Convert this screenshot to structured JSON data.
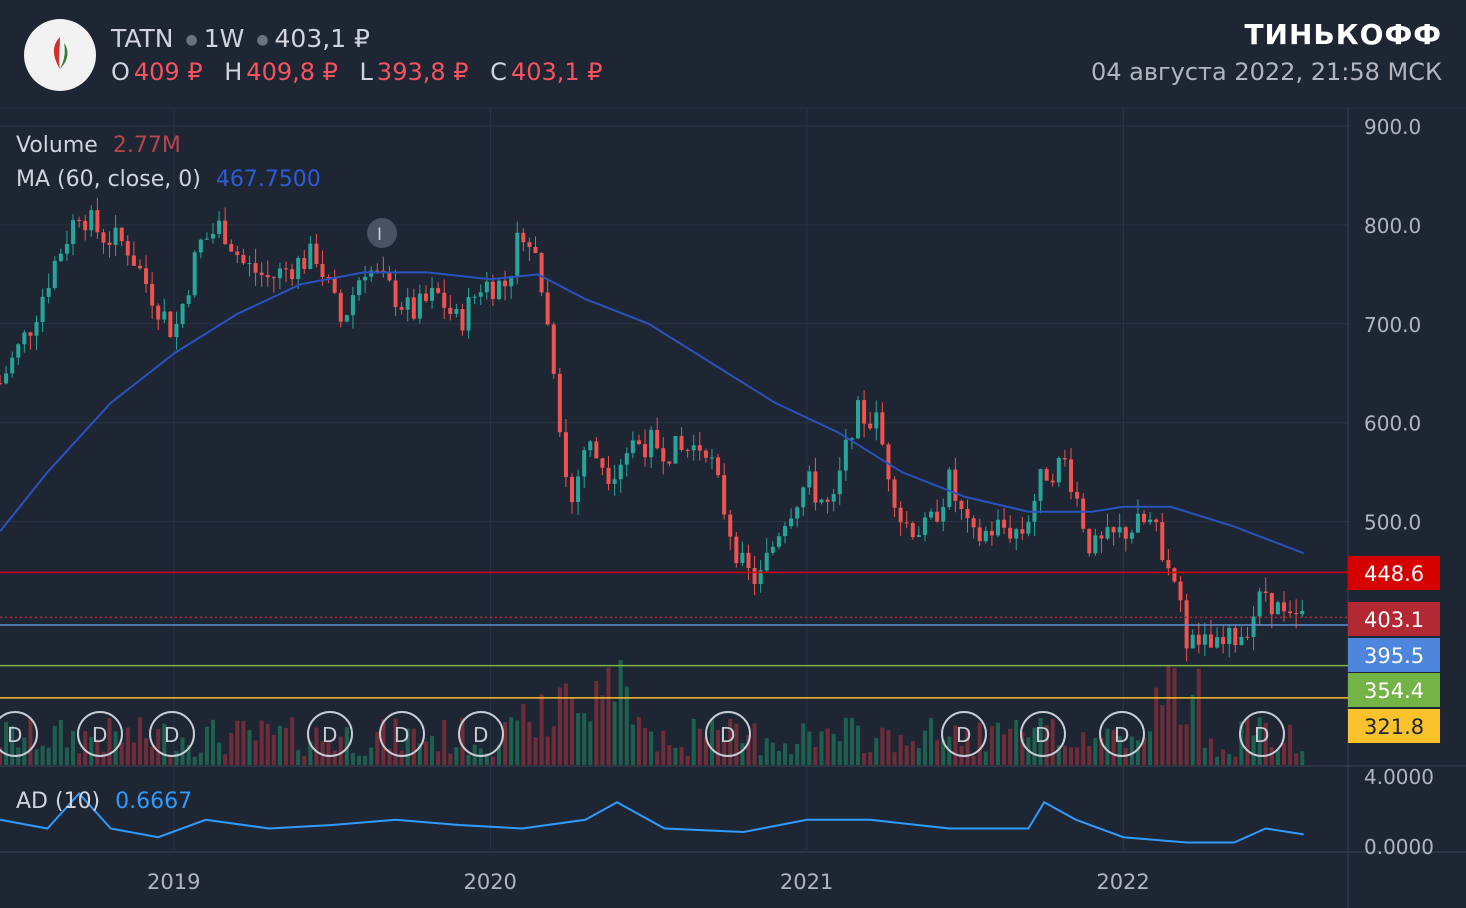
{
  "header": {
    "ticker": "TATN",
    "interval": "1W",
    "last_price": "403,1 ₽",
    "ohlc": [
      {
        "label": "O",
        "value": "409 ₽"
      },
      {
        "label": "H",
        "value": "409,8 ₽"
      },
      {
        "label": "L",
        "value": "393,8 ₽"
      },
      {
        "label": "C",
        "value": "403,1 ₽"
      }
    ],
    "brand": "ТИНЬКОФФ",
    "datetime": "04 августа 2022, 21:58 МСК"
  },
  "indicators": {
    "volume_label": "Volume",
    "volume_value": "2.77M",
    "ma_label": "MA (60, close, 0)",
    "ma_value": "467.7500",
    "ad_label": "AD (10)",
    "ad_value": "0.6667"
  },
  "colors": {
    "up": "#26a69a",
    "down": "#ef5350",
    "ma": "#2962ff",
    "ad": "#2f9bff",
    "background": "#1e2634"
  },
  "chart_data": {
    "type": "candlestick",
    "x_ticks": [
      "2019",
      "2020",
      "2021",
      "2022"
    ],
    "price_ticks": [
      900.0,
      800.0,
      700.0,
      600.0,
      500.0
    ],
    "price_ylim": [
      300,
      920
    ],
    "horizontal_levels": [
      {
        "value": 448.6,
        "label": "448.6",
        "color": "#d50000"
      },
      {
        "value": 403.1,
        "label": "403.1",
        "color": "#b22833",
        "dotted": true
      },
      {
        "value": 395.5,
        "label": "395.5",
        "color": "#5f8fd6"
      },
      {
        "value": 354.4,
        "label": "354.4",
        "color": "#7cb342"
      },
      {
        "value": 321.8,
        "label": "321.8",
        "color": "#fbc02d"
      }
    ],
    "dividend_markers": [
      "D",
      "D",
      "D",
      "D",
      "D",
      "D",
      "D",
      "D",
      "D",
      "D",
      "D"
    ],
    "event_marker": "I",
    "ad_ticks": [
      "4.0000",
      "0.0000"
    ],
    "price_path": [
      [
        2018.45,
        640
      ],
      [
        2018.55,
        700
      ],
      [
        2018.62,
        760
      ],
      [
        2018.7,
        815
      ],
      [
        2018.77,
        790
      ],
      [
        2018.85,
        780
      ],
      [
        2018.93,
        730
      ],
      [
        2019.0,
        690
      ],
      [
        2019.08,
        780
      ],
      [
        2019.15,
        800
      ],
      [
        2019.22,
        760
      ],
      [
        2019.3,
        745
      ],
      [
        2019.38,
        760
      ],
      [
        2019.45,
        770
      ],
      [
        2019.53,
        700
      ],
      [
        2019.6,
        760
      ],
      [
        2019.68,
        735
      ],
      [
        2019.75,
        710
      ],
      [
        2019.83,
        730
      ],
      [
        2019.9,
        700
      ],
      [
        2019.97,
        740
      ],
      [
        2020.05,
        740
      ],
      [
        2020.1,
        800
      ],
      [
        2020.15,
        760
      ],
      [
        2020.2,
        660
      ],
      [
        2020.25,
        510
      ],
      [
        2020.3,
        580
      ],
      [
        2020.38,
        550
      ],
      [
        2020.45,
        580
      ],
      [
        2020.5,
        580
      ],
      [
        2020.6,
        570
      ],
      [
        2020.68,
        580
      ],
      [
        2020.75,
        500
      ],
      [
        2020.8,
        450
      ],
      [
        2020.85,
        440
      ],
      [
        2020.92,
        500
      ],
      [
        2021.0,
        540
      ],
      [
        2021.08,
        510
      ],
      [
        2021.15,
        610
      ],
      [
        2021.22,
        600
      ],
      [
        2021.3,
        500
      ],
      [
        2021.38,
        490
      ],
      [
        2021.45,
        540
      ],
      [
        2021.52,
        480
      ],
      [
        2021.6,
        495
      ],
      [
        2021.68,
        490
      ],
      [
        2021.75,
        550
      ],
      [
        2021.82,
        560
      ],
      [
        2021.9,
        470
      ],
      [
        2022.0,
        490
      ],
      [
        2022.08,
        500
      ],
      [
        2022.15,
        460
      ],
      [
        2022.2,
        380
      ],
      [
        2022.3,
        370
      ],
      [
        2022.38,
        390
      ],
      [
        2022.45,
        430
      ],
      [
        2022.52,
        395
      ],
      [
        2022.57,
        403.1
      ]
    ],
    "ma_path": [
      [
        2018.45,
        490
      ],
      [
        2018.6,
        550
      ],
      [
        2018.8,
        620
      ],
      [
        2019.0,
        670
      ],
      [
        2019.2,
        710
      ],
      [
        2019.4,
        740
      ],
      [
        2019.6,
        752
      ],
      [
        2019.8,
        752
      ],
      [
        2020.0,
        745
      ],
      [
        2020.15,
        750
      ],
      [
        2020.3,
        725
      ],
      [
        2020.5,
        700
      ],
      [
        2020.7,
        660
      ],
      [
        2020.9,
        620
      ],
      [
        2021.1,
        590
      ],
      [
        2021.3,
        550
      ],
      [
        2021.5,
        525
      ],
      [
        2021.7,
        510
      ],
      [
        2021.9,
        510
      ],
      [
        2022.0,
        515
      ],
      [
        2022.15,
        515
      ],
      [
        2022.35,
        495
      ],
      [
        2022.57,
        468
      ]
    ],
    "ad_path": [
      [
        2018.45,
        1.5
      ],
      [
        2018.6,
        1.0
      ],
      [
        2018.7,
        3.0
      ],
      [
        2018.8,
        1.0
      ],
      [
        2018.95,
        0.5
      ],
      [
        2019.1,
        1.5
      ],
      [
        2019.3,
        1.0
      ],
      [
        2019.5,
        1.2
      ],
      [
        2019.7,
        1.5
      ],
      [
        2019.9,
        1.2
      ],
      [
        2020.1,
        1.0
      ],
      [
        2020.3,
        1.5
      ],
      [
        2020.4,
        2.5
      ],
      [
        2020.55,
        1.0
      ],
      [
        2020.8,
        0.8
      ],
      [
        2021.0,
        1.5
      ],
      [
        2021.2,
        1.5
      ],
      [
        2021.45,
        1.0
      ],
      [
        2021.7,
        1.0
      ],
      [
        2021.75,
        2.5
      ],
      [
        2021.85,
        1.5
      ],
      [
        2022.0,
        0.5
      ],
      [
        2022.2,
        0.2
      ],
      [
        2022.35,
        0.2
      ],
      [
        2022.45,
        1.0
      ],
      [
        2022.57,
        0.6667
      ]
    ]
  }
}
